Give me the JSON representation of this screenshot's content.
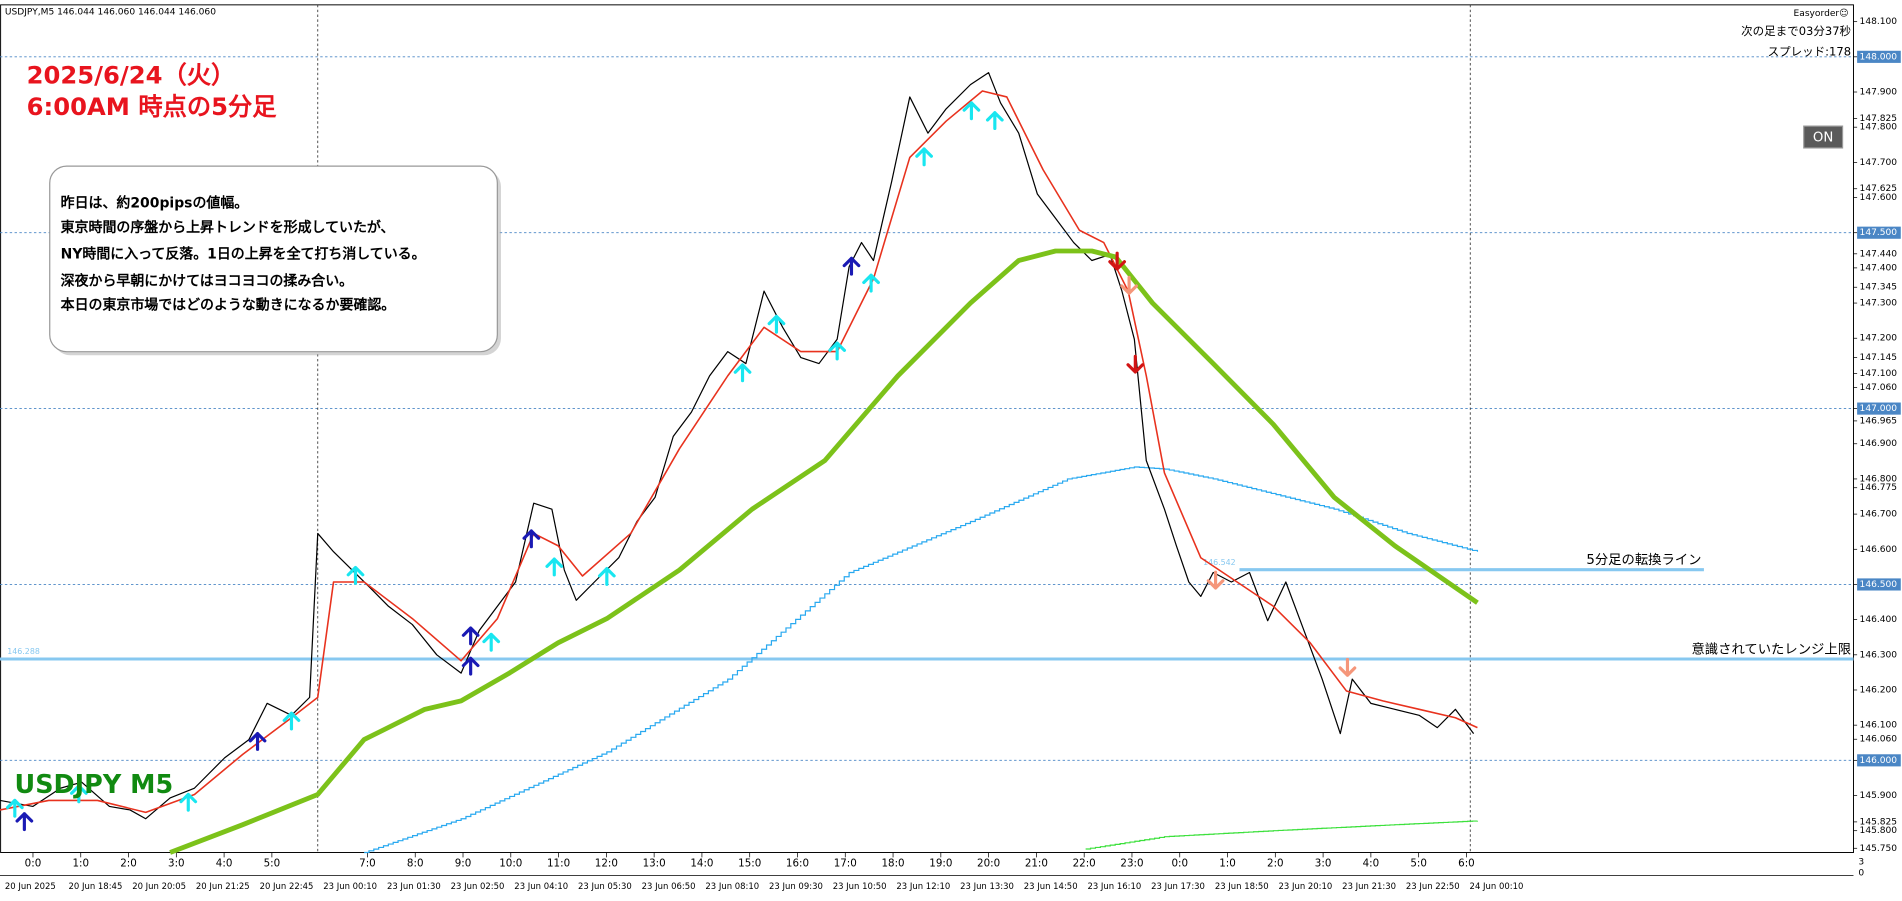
{
  "header": {
    "symbol_info": "USDJPY,M5  146.044 146.060 146.044 146.060"
  },
  "panel": {
    "brand": "Easyorder☺",
    "countdown": "次の足まで03分37秒",
    "spread": "スプレッド:178",
    "button": "ON"
  },
  "annotation": {
    "title_lines": [
      "2025/6/24（火）",
      "6:00AM 時点の5分足"
    ],
    "note_lines": [
      "昨日は、約200pipsの値幅。",
      "東京時間の序盤から上昇トレンドを形成していたが、",
      "NY時間に入って反落。1日の上昇を全て打ち消している。",
      "深夜から早朝にかけてはヨコヨコの揉み合い。",
      "本日の東京市場ではどのような動きになるか要確認。"
    ],
    "watermark": "USDJPY M5",
    "sub_axis_labels": [
      "3",
      "0"
    ]
  },
  "chart_data": {
    "type": "line",
    "xlim": [
      -0.69,
      38.1
    ],
    "ylim": [
      145.738,
      148.134
    ],
    "xticks": [
      {
        "value": 0,
        "label": "0:0"
      },
      {
        "value": 1,
        "label": "1:0"
      },
      {
        "value": 2,
        "label": "2:0"
      },
      {
        "value": 3,
        "label": "3:0"
      },
      {
        "value": 4,
        "label": "4:0"
      },
      {
        "value": 5,
        "label": "5:0"
      },
      {
        "value": 7,
        "label": "7:0"
      },
      {
        "value": 8,
        "label": "8:0"
      },
      {
        "value": 9,
        "label": "9:0"
      },
      {
        "value": 10,
        "label": "10:0"
      },
      {
        "value": 11,
        "label": "11:0"
      },
      {
        "value": 12,
        "label": "12:0"
      },
      {
        "value": 13,
        "label": "13:0"
      },
      {
        "value": 14,
        "label": "14:0"
      },
      {
        "value": 15,
        "label": "15:0"
      },
      {
        "value": 16,
        "label": "16:0"
      },
      {
        "value": 17,
        "label": "17:0"
      },
      {
        "value": 18,
        "label": "18:0"
      },
      {
        "value": 19,
        "label": "19:0"
      },
      {
        "value": 20,
        "label": "20:0"
      },
      {
        "value": 21,
        "label": "21:0"
      },
      {
        "value": 22,
        "label": "22:0"
      },
      {
        "value": 23,
        "label": "23:0"
      },
      {
        "value": 24,
        "label": "0:0"
      },
      {
        "value": 25,
        "label": "1:0"
      },
      {
        "value": 26,
        "label": "2:0"
      },
      {
        "value": 27,
        "label": "3:0"
      },
      {
        "value": 28,
        "label": "4:0"
      },
      {
        "value": 29,
        "label": "5:0"
      },
      {
        "value": 30,
        "label": "6:0"
      }
    ],
    "date_labels": [
      "20 Jun 2025",
      "20 Jun 18:45",
      "20 Jun 20:05",
      "20 Jun 21:25",
      "20 Jun 22:45",
      "23 Jun 00:10",
      "23 Jun 01:30",
      "23 Jun 02:50",
      "23 Jun 04:10",
      "23 Jun 05:30",
      "23 Jun 06:50",
      "23 Jun 08:10",
      "23 Jun 09:30",
      "23 Jun 10:50",
      "23 Jun 12:10",
      "23 Jun 13:30",
      "23 Jun 14:50",
      "23 Jun 16:10",
      "23 Jun 17:30",
      "23 Jun 18:50",
      "23 Jun 20:10",
      "23 Jun 21:30",
      "23 Jun 22:50",
      "24 Jun 00:10"
    ],
    "yticks": [
      {
        "value": 148.1,
        "label": "148.100"
      },
      {
        "value": 148.0,
        "label": "148.000"
      },
      {
        "value": 147.9,
        "label": "147.900"
      },
      {
        "value": 147.825,
        "label": "147.825"
      },
      {
        "value": 147.8,
        "label": "147.800"
      },
      {
        "value": 147.7,
        "label": "147.700"
      },
      {
        "value": 147.625,
        "label": "147.625"
      },
      {
        "value": 147.6,
        "label": "147.600"
      },
      {
        "value": 147.5,
        "label": "147.500"
      },
      {
        "value": 147.44,
        "label": "147.440"
      },
      {
        "value": 147.4,
        "label": "147.400"
      },
      {
        "value": 147.345,
        "label": "147.345"
      },
      {
        "value": 147.3,
        "label": "147.300"
      },
      {
        "value": 147.2,
        "label": "147.200"
      },
      {
        "value": 147.145,
        "label": "147.145"
      },
      {
        "value": 147.1,
        "label": "147.100"
      },
      {
        "value": 147.06,
        "label": "147.060"
      },
      {
        "value": 147.0,
        "label": "147.000"
      },
      {
        "value": 146.965,
        "label": "146.965"
      },
      {
        "value": 146.9,
        "label": "146.900"
      },
      {
        "value": 146.8,
        "label": "146.800"
      },
      {
        "value": 146.775,
        "label": "146.775"
      },
      {
        "value": 146.7,
        "label": "146.700"
      },
      {
        "value": 146.6,
        "label": "146.600"
      },
      {
        "value": 146.5,
        "label": "146.500"
      },
      {
        "value": 146.4,
        "label": "146.400"
      },
      {
        "value": 146.3,
        "label": "146.300"
      },
      {
        "value": 146.2,
        "label": "146.200"
      },
      {
        "value": 146.1,
        "label": "146.100"
      },
      {
        "value": 146.06,
        "label": "146.060"
      },
      {
        "value": 146.0,
        "label": "146.000"
      },
      {
        "value": 145.9,
        "label": "145.900"
      },
      {
        "value": 145.825,
        "label": "145.825"
      },
      {
        "value": 145.8,
        "label": "145.800"
      },
      {
        "value": 145.75,
        "label": "145.750"
      }
    ],
    "grid_yticks": [
      148.0,
      147.5,
      147.0,
      146.5,
      146.0
    ],
    "grid_color": "#4a86c5",
    "vlines": [
      5.96,
      30.08
    ],
    "levels": [
      {
        "value": 146.288,
        "label": "146.288",
        "text": "意識されていたレンジ上限",
        "color": "#87c8f0"
      },
      {
        "value": 146.542,
        "label": "146.542",
        "text": "5分足の転換ライン",
        "color": "#87c8f0",
        "x": [
          25.25,
          34.97
        ]
      }
    ],
    "series": [
      {
        "kind": "line",
        "color": "#000000",
        "width": 1,
        "x": [
          -0.69,
          0,
          0.58,
          1.02,
          1.6,
          2.03,
          2.36,
          2.87,
          3.38,
          4.01,
          4.52,
          4.9,
          5.41,
          5.79,
          5.96,
          6.29,
          6.68,
          7.06,
          7.44,
          7.94,
          8.45,
          8.96,
          9.34,
          9.72,
          10.1,
          10.48,
          10.86,
          11.12,
          11.37,
          11.75,
          12.26,
          12.64,
          13.02,
          13.4,
          13.78,
          14.16,
          14.54,
          14.92,
          15.3,
          15.69,
          16.07,
          16.45,
          16.83,
          17.08,
          17.34,
          17.59,
          17.97,
          18.35,
          18.73,
          19.11,
          19.62,
          20,
          20.25,
          20.63,
          21.02,
          21.4,
          21.78,
          22.16,
          22.54,
          22.79,
          23.05,
          23.3,
          23.68,
          23.93,
          24.19,
          24.44,
          24.7,
          25.08,
          25.46,
          25.84,
          26.22,
          26.6,
          26.98,
          27.36,
          27.61,
          28,
          28.5,
          29.01,
          29.39,
          29.77,
          30.15
        ],
        "values": [
          145.886,
          145.869,
          145.921,
          145.938,
          145.869,
          145.859,
          145.834,
          145.893,
          145.921,
          146.007,
          146.059,
          146.162,
          146.128,
          146.179,
          146.645,
          146.593,
          146.541,
          146.49,
          146.438,
          146.386,
          146.3,
          146.248,
          146.369,
          146.438,
          146.507,
          146.731,
          146.714,
          146.541,
          146.455,
          146.507,
          146.576,
          146.679,
          146.748,
          146.921,
          146.99,
          147.093,
          147.162,
          147.128,
          147.334,
          147.231,
          147.145,
          147.128,
          147.197,
          147.403,
          147.472,
          147.421,
          147.645,
          147.886,
          147.783,
          147.852,
          147.921,
          147.955,
          147.869,
          147.783,
          147.61,
          147.541,
          147.472,
          147.421,
          147.438,
          147.334,
          147.197,
          146.852,
          146.714,
          146.61,
          146.507,
          146.466,
          146.534,
          146.507,
          146.534,
          146.397,
          146.507,
          146.369,
          146.231,
          146.076,
          146.231,
          146.162,
          146.145,
          146.128,
          146.093,
          146.145,
          146.076
        ]
      },
      {
        "kind": "line",
        "color": "#e8321e",
        "width": 1.3,
        "x": [
          -0.69,
          0.33,
          1.35,
          2.36,
          3.38,
          4.39,
          5.41,
          5.96,
          6.29,
          6.93,
          7.94,
          8.96,
          9.72,
          10.48,
          10.99,
          11.5,
          12.51,
          13.53,
          14.54,
          15.3,
          16.07,
          16.83,
          17.59,
          18.35,
          19.11,
          19.87,
          20.38,
          21.14,
          21.9,
          22.41,
          22.92,
          23.3,
          23.68,
          24.44,
          25.2,
          25.96,
          26.73,
          27.49,
          28.25,
          29.01,
          29.77,
          30.23
        ],
        "values": [
          145.859,
          145.886,
          145.886,
          145.852,
          145.903,
          146.017,
          146.121,
          146.179,
          146.507,
          146.507,
          146.403,
          146.283,
          146.403,
          146.645,
          146.61,
          146.524,
          146.645,
          146.886,
          147.093,
          147.231,
          147.162,
          147.162,
          147.369,
          147.714,
          147.817,
          147.903,
          147.886,
          147.679,
          147.507,
          147.472,
          147.334,
          147.093,
          146.817,
          146.576,
          146.507,
          146.438,
          146.334,
          146.197,
          146.169,
          146.145,
          146.121,
          146.093
        ]
      },
      {
        "kind": "line",
        "color": "#7cc21a",
        "width": 4,
        "x": [
          2.87,
          4.39,
          5.96,
          6.93,
          8.2,
          8.96,
          9.97,
          10.99,
          12.01,
          13.53,
          15.05,
          16.57,
          18.1,
          19.62,
          20.63,
          21.4,
          22.16,
          22.66,
          23.43,
          24.7,
          25.96,
          27.23,
          28.5,
          30.23
        ],
        "values": [
          145.738,
          145.817,
          145.903,
          146.059,
          146.145,
          146.169,
          146.248,
          146.334,
          146.403,
          146.541,
          146.714,
          146.852,
          147.093,
          147.3,
          147.421,
          147.448,
          147.448,
          147.431,
          147.3,
          147.128,
          146.955,
          146.748,
          146.61,
          146.448
        ]
      },
      {
        "kind": "step",
        "color": "#29a9f0",
        "width": 1,
        "x": [
          6.93,
          8.96,
          12.01,
          14.54,
          17.08,
          19.62,
          21.65,
          23.05,
          23.68,
          24.7,
          27.23,
          28.76,
          30.23
        ],
        "values": [
          145.738,
          145.834,
          146.024,
          146.231,
          146.534,
          146.679,
          146.8,
          146.834,
          146.828,
          146.8,
          146.714,
          146.645,
          146.593
        ]
      },
      {
        "kind": "step",
        "color": "#3ce03c",
        "width": 1,
        "x": [
          22.03,
          23.68,
          25.96,
          28.5,
          30.23
        ],
        "values": [
          145.748,
          145.783,
          145.8,
          145.817,
          145.828
        ]
      },
      {
        "kind": "up-arrow",
        "color": "#19e6f0",
        "x": [
          -0.38,
          0.96,
          3.25,
          5.41,
          6.75,
          9.59,
          10.91,
          12.01,
          14.85,
          15.56,
          16.83,
          17.54,
          18.65,
          19.64,
          20.13
        ],
        "values": [
          145.862,
          145.903,
          145.879,
          146.11,
          146.524,
          146.334,
          146.548,
          146.521,
          147.1,
          147.238,
          147.162,
          147.355,
          147.714,
          147.845,
          147.817
        ]
      },
      {
        "kind": "up-arrow",
        "color": "#1a1ab4",
        "x": [
          -0.18,
          4.7,
          9.16,
          9.16,
          10.43,
          17.13
        ],
        "values": [
          145.824,
          146.052,
          146.352,
          146.266,
          146.628,
          147.403
        ]
      },
      {
        "kind": "down-arrow",
        "color": "#d21414",
        "x": [
          22.69,
          23.07
        ],
        "values": [
          147.421,
          147.128
        ]
      },
      {
        "kind": "down-arrow",
        "color": "#f5967a",
        "x": [
          22.94,
          24.75,
          27.51
        ],
        "values": [
          147.352,
          146.514,
          146.266
        ]
      }
    ]
  }
}
